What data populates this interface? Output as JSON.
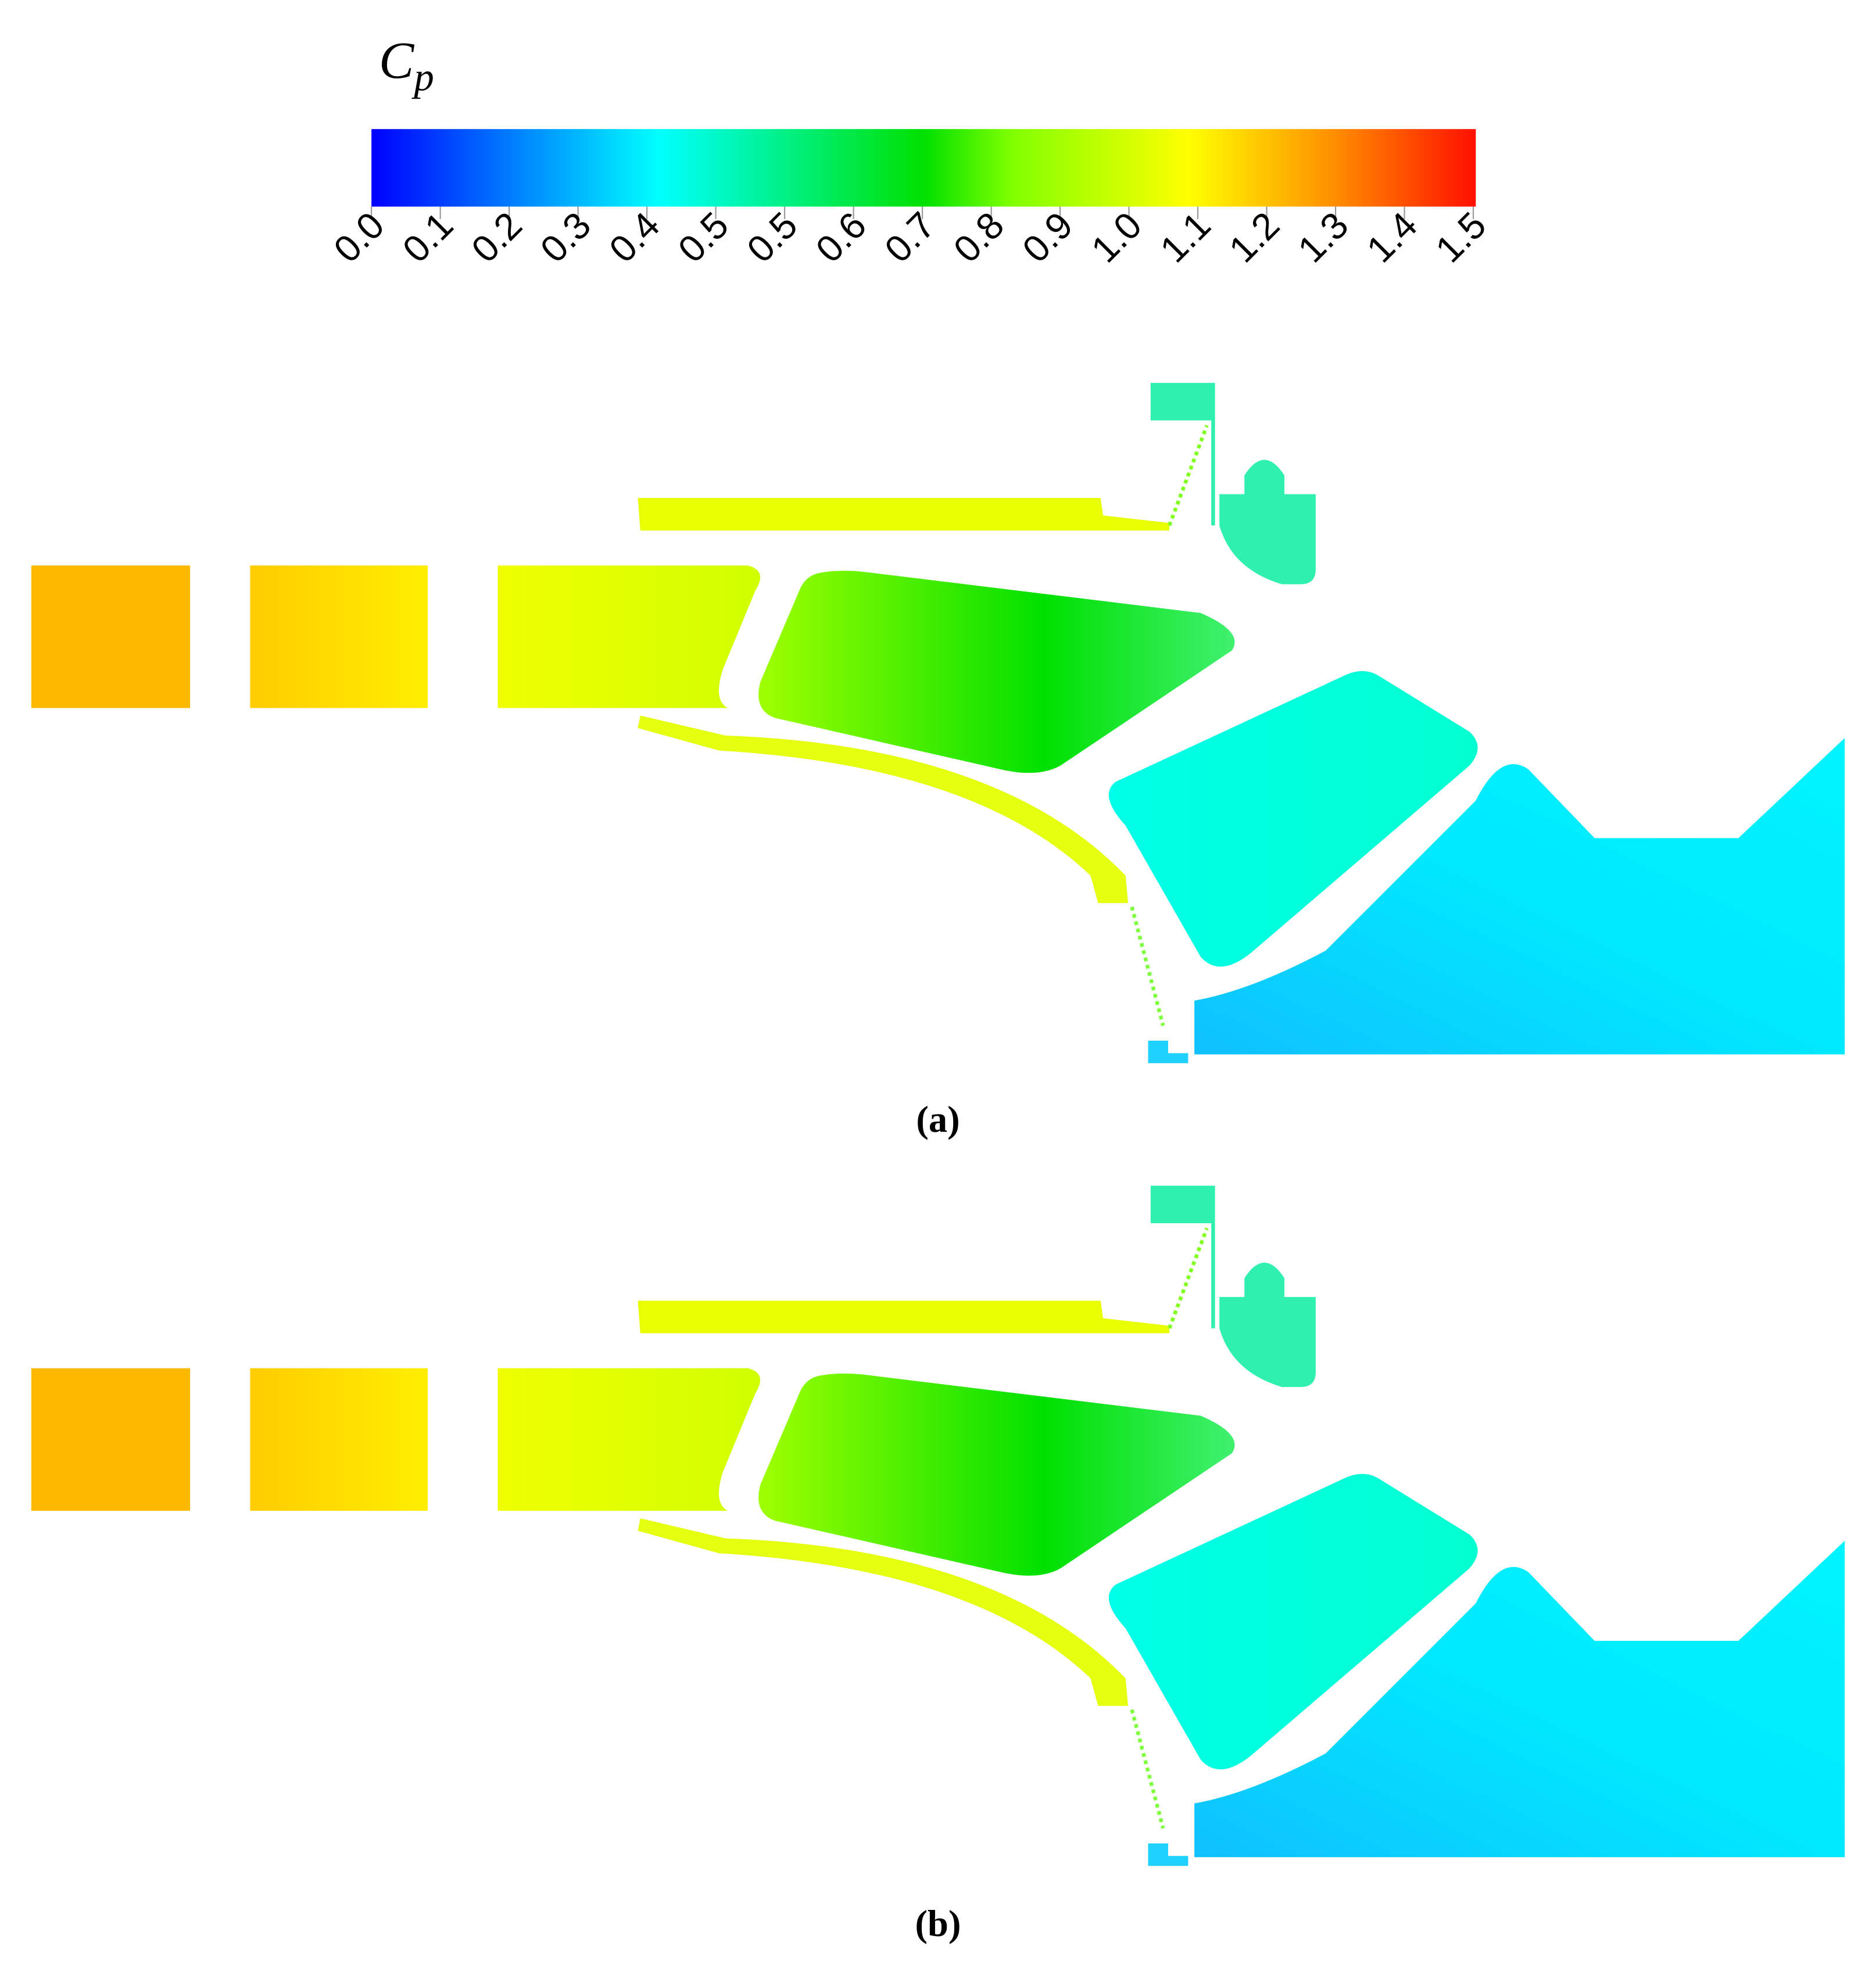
{
  "colorbar": {
    "title": "C",
    "title_subscript": "p",
    "ticks": [
      "0.0",
      "0.1",
      "0.2",
      "0.3",
      "0.4",
      "0.5",
      "0.5",
      "0.6",
      "0.7",
      "0.8",
      "0.9",
      "1.0",
      "1.1",
      "1.2",
      "1.3",
      "1.4",
      "1.5"
    ]
  },
  "panels": [
    {
      "caption": "(a)"
    },
    {
      "caption": "(b)"
    }
  ]
}
